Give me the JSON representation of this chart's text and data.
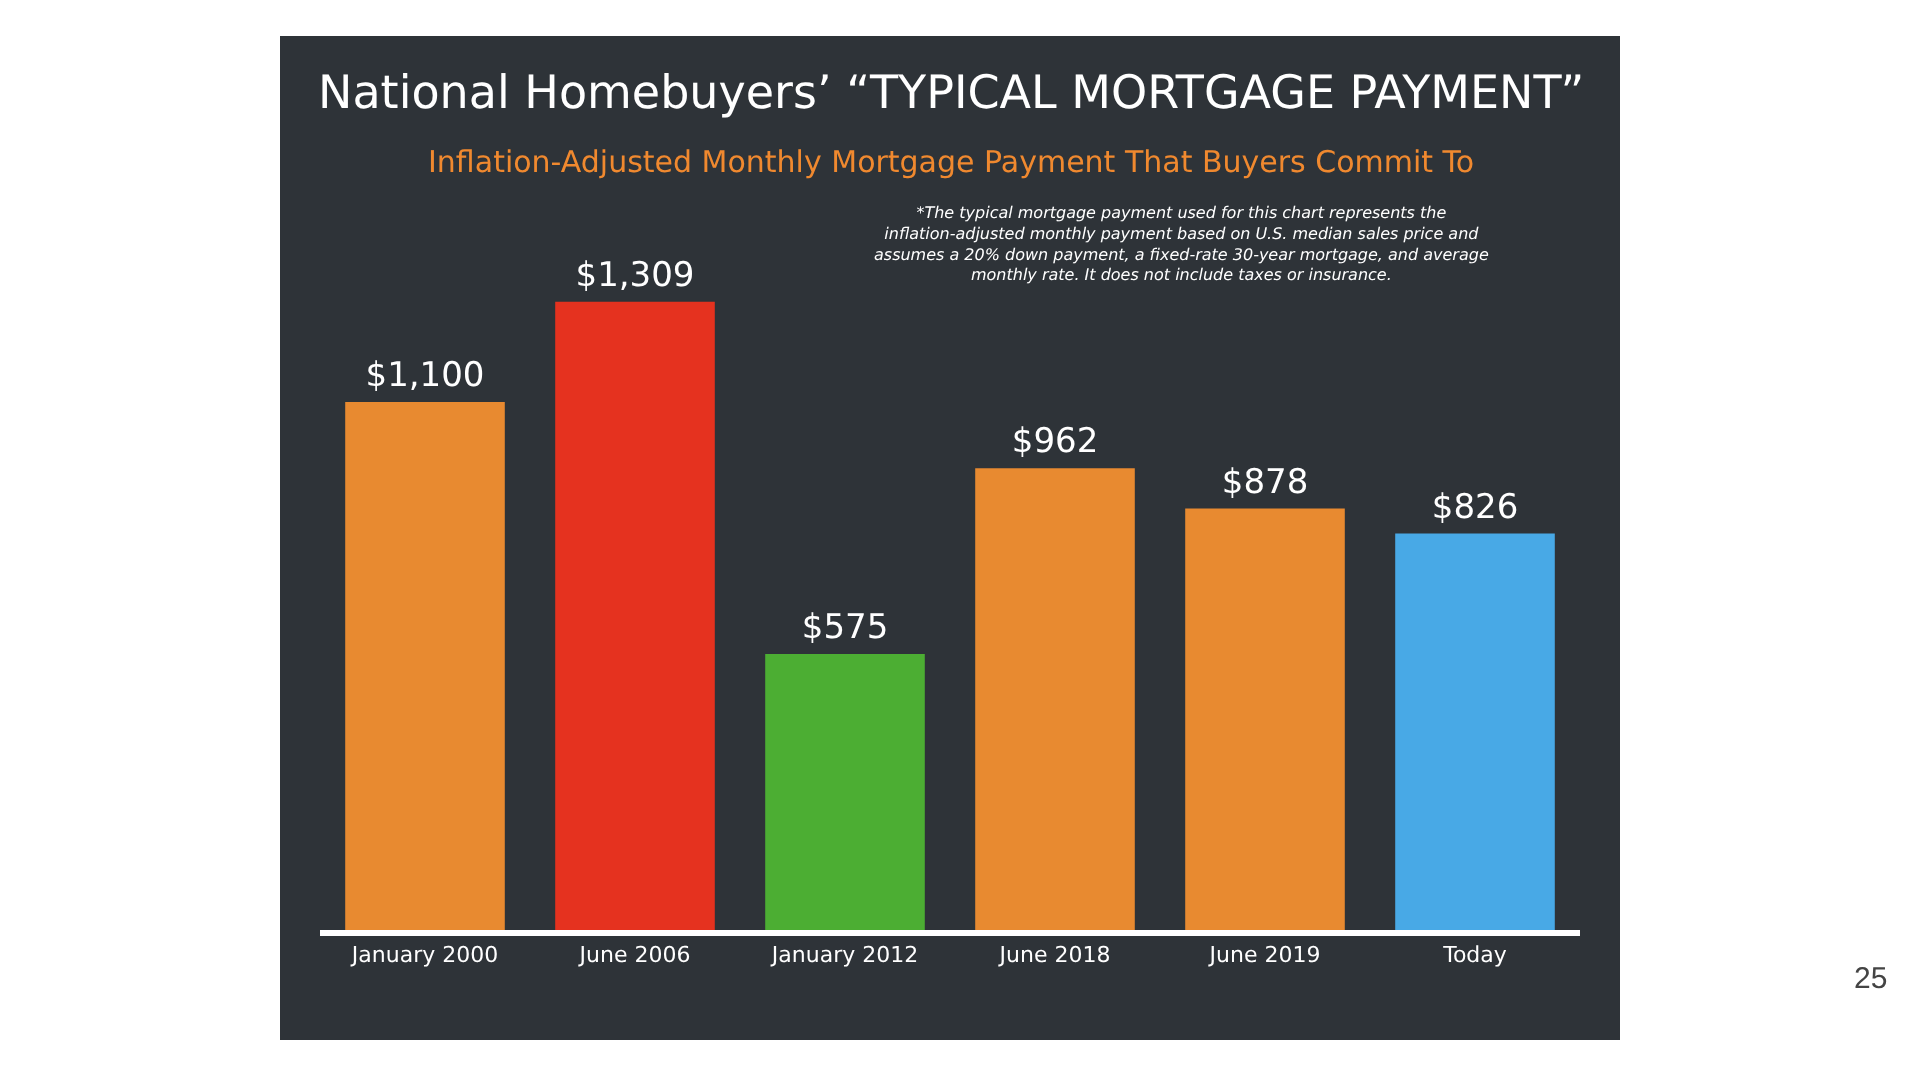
{
  "chart_data": {
    "type": "bar",
    "title": "National Homebuyers’ “TYPICAL MORTGAGE PAYMENT”",
    "subtitle": "Inflation-Adjusted Monthly Mortgage Payment That Buyers Commit To",
    "categories": [
      "January 2000",
      "June 2006",
      "January 2012",
      "June 2018",
      "June 2019",
      "Today"
    ],
    "values": [
      1100,
      1309,
      575,
      962,
      878,
      826
    ],
    "colors": [
      "#e88a30",
      "#e5321f",
      "#4cae33",
      "#e88a30",
      "#e88a30",
      "#48a9e6"
    ],
    "value_labels": [
      "$1,100",
      "$1,309",
      "$575",
      "$962",
      "$878",
      "$826"
    ],
    "annotations": [
      "*The typical mortgage payment used for this chart represents the inflation-adjusted monthly payment based on U.S. median sales price and assumes a 20% down payment, a fixed-rate 30-year mortgage, and average monthly rate. It does not include taxes or insurance.",
      "25"
    ],
    "grid": false,
    "legend": false,
    "tick_labels": "x"
  }
}
